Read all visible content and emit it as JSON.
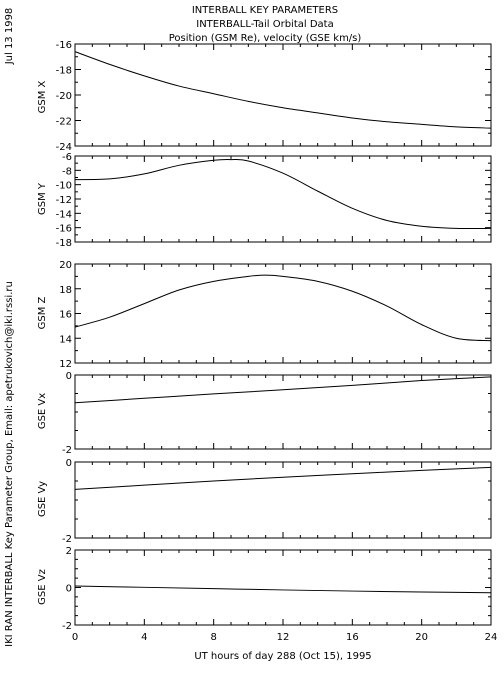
{
  "side_date": "Jul 13 1998",
  "side_credit": "IKI RAN INTERBALL Key Parameter Group, Email: apetrukovich@iki.rssi.ru",
  "title_lines": [
    "INTERBALL KEY PARAMETERS",
    "INTERBALL-Tail Orbital Data",
    "Position (GSM Re), velocity (GSE km/s)"
  ],
  "chart_data": {
    "type": "line",
    "xlabel": "UT hours of day 288 (Oct 15), 1995",
    "xlim": [
      0,
      24
    ],
    "xticks": [
      0,
      4,
      8,
      12,
      16,
      20,
      24
    ],
    "panels": [
      {
        "ylabel": "GSM X",
        "ylim": [
          -24,
          -16
        ],
        "yticks": [
          -24,
          -22,
          -20,
          -18,
          -16
        ],
        "x": [
          0,
          2,
          4,
          6,
          8,
          10,
          12,
          14,
          16,
          18,
          20,
          22,
          24
        ],
        "y": [
          -16.6,
          -17.6,
          -18.5,
          -19.3,
          -19.9,
          -20.5,
          -21.0,
          -21.4,
          -21.8,
          -22.1,
          -22.3,
          -22.5,
          -22.6
        ]
      },
      {
        "ylabel": "GSM Y",
        "ylim": [
          -18,
          -6
        ],
        "yticks": [
          -18,
          -16,
          -14,
          -12,
          -10,
          -8,
          -6
        ],
        "x": [
          0,
          2,
          4,
          6,
          8,
          9,
          10,
          12,
          14,
          16,
          18,
          20,
          22,
          24
        ],
        "y": [
          -9.3,
          -9.2,
          -8.5,
          -7.3,
          -6.6,
          -6.5,
          -6.7,
          -8.4,
          -10.9,
          -13.3,
          -15.0,
          -15.8,
          -16.1,
          -16.1
        ]
      },
      {
        "ylabel": "GSM Z",
        "ylim": [
          12,
          20
        ],
        "yticks": [
          12,
          14,
          16,
          18,
          20
        ],
        "x": [
          0,
          2,
          4,
          6,
          8,
          10,
          11,
          12,
          14,
          16,
          18,
          20,
          22,
          24
        ],
        "y": [
          14.9,
          15.7,
          16.8,
          17.9,
          18.6,
          19.0,
          19.1,
          19.0,
          18.6,
          17.8,
          16.6,
          15.1,
          14.0,
          13.8
        ]
      },
      {
        "ylabel": "GSE Vx",
        "ylim": [
          -2,
          0
        ],
        "yticks": [
          -2,
          0
        ],
        "x": [
          0,
          4,
          8,
          12,
          16,
          20,
          24
        ],
        "y": [
          -0.75,
          -0.63,
          -0.51,
          -0.4,
          -0.28,
          -0.15,
          -0.05
        ]
      },
      {
        "ylabel": "GSE Vy",
        "ylim": [
          -2,
          0
        ],
        "yticks": [
          -2,
          0
        ],
        "x": [
          0,
          4,
          8,
          12,
          16,
          20,
          24
        ],
        "y": [
          -0.72,
          -0.61,
          -0.5,
          -0.4,
          -0.31,
          -0.22,
          -0.14
        ]
      },
      {
        "ylabel": "GSE Vz",
        "ylim": [
          -2,
          2
        ],
        "yticks": [
          -2,
          0,
          2
        ],
        "x": [
          0,
          4,
          8,
          12,
          16,
          20,
          24
        ],
        "y": [
          0.08,
          0.01,
          -0.06,
          -0.13,
          -0.19,
          -0.24,
          -0.28
        ]
      }
    ]
  }
}
